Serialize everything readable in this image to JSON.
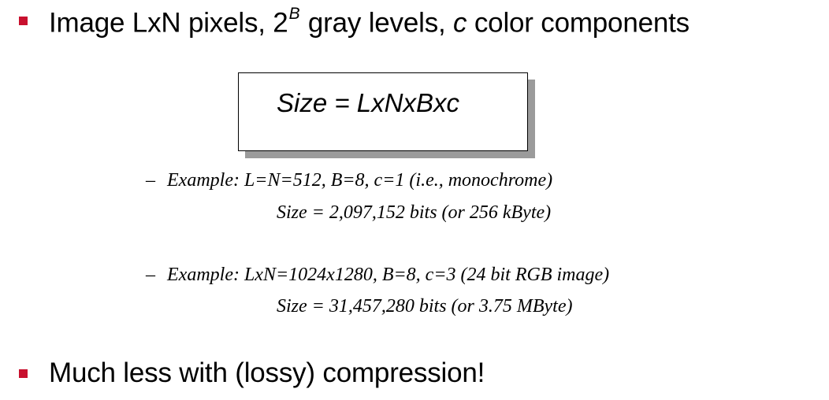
{
  "bullets": [
    {
      "prefix": "Image LxN pixels, ",
      "base": "2",
      "superscript": "B",
      "middle": " gray levels, ",
      "var": "c",
      "suffix": " color components"
    },
    {
      "text": "Much less with (lossy) compression!"
    }
  ],
  "formula": "Size = LxNxBxc",
  "examples": [
    {
      "dash": "–",
      "line1": "Example: L=N=512, B=8, c=1 (i.e., monochrome)",
      "line2": "Size = 2,097,152 bits (or 256 kByte)"
    },
    {
      "dash": "–",
      "line1": "Example: LxN=1024x1280, B=8, c=3 (24 bit RGB image)",
      "line2": "Size = 31,457,280 bits (or 3.75 MByte)"
    }
  ],
  "colors": {
    "bullet": "#c8102e",
    "shadow": "#9b9b9b"
  }
}
